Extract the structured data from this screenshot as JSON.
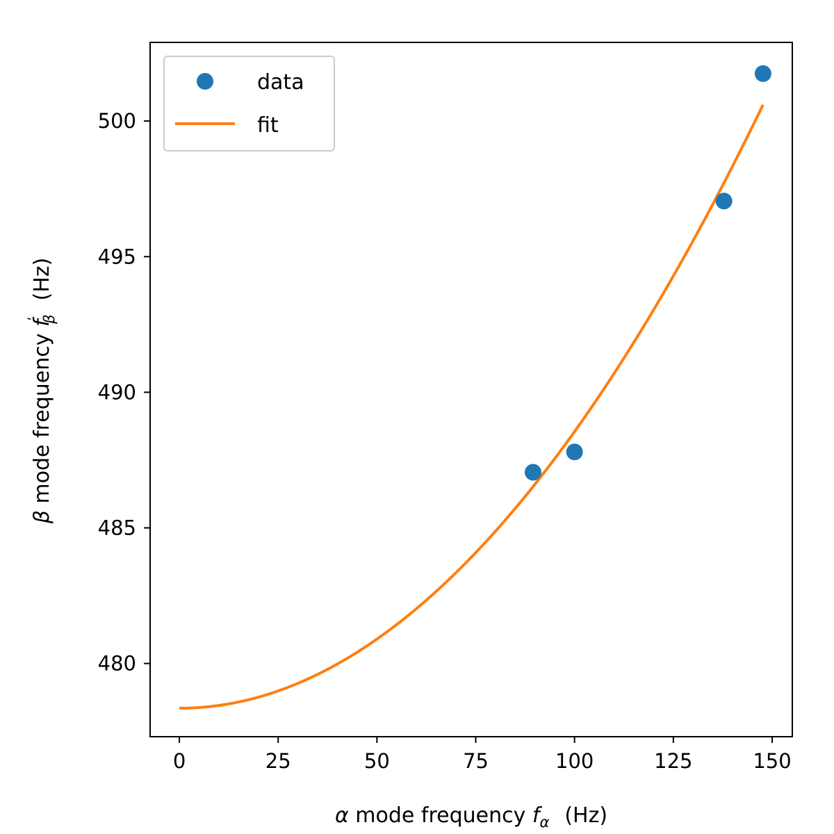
{
  "chart_data": {
    "type": "scatter",
    "series": [
      {
        "name": "data",
        "kind": "points",
        "color": "#1f77b4",
        "x": [
          89.5,
          100.0,
          137.8,
          147.7
        ],
        "y": [
          487.05,
          487.8,
          497.05,
          501.75
        ]
      },
      {
        "name": "fit",
        "kind": "line",
        "color": "#ff7f0e",
        "model": "quadratic",
        "x_start": 0,
        "x_end": 147.7,
        "y_at_zero": 478.35,
        "coefficient": 0.00102
      }
    ],
    "xlabel": {
      "prefix": "α",
      "text": " mode frequency ",
      "var": "f",
      "sub": "α",
      "unit": "(Hz)"
    },
    "ylabel": {
      "prefix": "β",
      "text": " mode frequency ",
      "var": "f",
      "sup": "ʹ",
      "sub": "β",
      "unit": "(Hz)"
    },
    "xlim": [
      -7.4,
      155.1
    ],
    "ylim": [
      477.3,
      502.9
    ],
    "xticks": [
      0,
      25,
      50,
      75,
      100,
      125,
      150
    ],
    "xtick_labels": [
      "0",
      "25",
      "50",
      "75",
      "100",
      "125",
      "150"
    ],
    "yticks": [
      480,
      485,
      490,
      495,
      500
    ],
    "ytick_labels": [
      "480",
      "485",
      "490",
      "495",
      "500"
    ],
    "grid": false,
    "legend": {
      "position": "top-left",
      "entries": [
        "data",
        "fit"
      ]
    }
  }
}
